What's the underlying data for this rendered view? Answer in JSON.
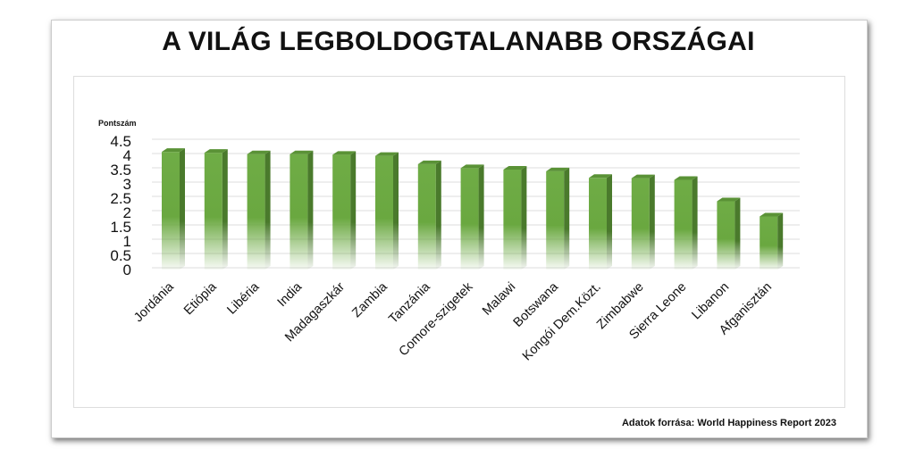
{
  "chart_data": {
    "type": "bar",
    "title": "A VILÁG LEGBOLDOGTALANABB ORSZÁGAI",
    "ylabel": "Pontszám",
    "xlabel": "",
    "ylim": [
      0,
      4.5
    ],
    "yticks": [
      "0",
      "0.5",
      "1",
      "1.5",
      "2",
      "2.5",
      "3",
      "3.5",
      "4",
      "4.5"
    ],
    "grid": true,
    "categories": [
      "Jordánia",
      "Etiópia",
      "Libéria",
      "India",
      "Madagaszkár",
      "Zambia",
      "Tanzánia",
      "Comore-szigetek",
      "Malawi",
      "Botswana",
      "Kongói Dem.Közt.",
      "Zimbabwe",
      "Sierra Leone",
      "Libanon",
      "Afganisztán"
    ],
    "values": [
      4.12,
      4.09,
      4.04,
      4.04,
      4.02,
      3.98,
      3.69,
      3.55,
      3.5,
      3.44,
      3.21,
      3.2,
      3.14,
      2.39,
      1.86
    ],
    "bar_color": "#70ad47",
    "bar_side_color": "#4a7a2c",
    "source": "Adatok forrása: World Happiness Report 2023"
  }
}
